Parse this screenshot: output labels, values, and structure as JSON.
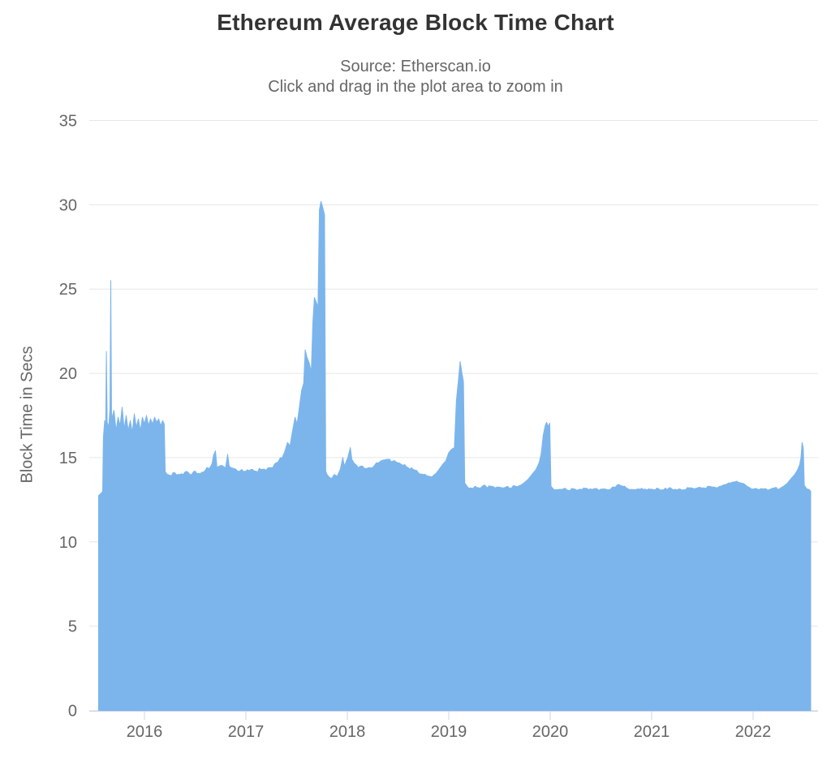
{
  "chart_data": {
    "type": "area",
    "title": "Ethereum Average Block Time Chart",
    "subtitle": [
      "Source: Etherscan.io",
      "Click and drag in the plot area to zoom in"
    ],
    "xlabel": "",
    "ylabel": "Block Time in Secs",
    "unit": "seconds",
    "ylim": [
      0,
      35
    ],
    "y_ticks": [
      0,
      5,
      10,
      15,
      20,
      25,
      30,
      35
    ],
    "x_ticks": [
      2016,
      2017,
      2018,
      2019,
      2020,
      2021,
      2022
    ],
    "x_tick_labels": [
      "2016",
      "2017",
      "2018",
      "2019",
      "2020",
      "2021",
      "2022"
    ],
    "xlim": [
      2015.45,
      2022.63
    ],
    "grid": "horizontal-only",
    "legend": "none",
    "colors": {
      "series_fill": "#7cb5ec",
      "series_line": "#7cb5ec",
      "grid": "#e6e6e6",
      "axis_line": "#ccd6eb",
      "label": "#666666",
      "title": "#333333",
      "background": "#ffffff"
    },
    "points": [
      [
        2015.548,
        12.75
      ],
      [
        2015.575,
        12.9
      ],
      [
        2015.588,
        13.0
      ],
      [
        2015.595,
        16.2
      ],
      [
        2015.608,
        17.2
      ],
      [
        2015.618,
        16.9
      ],
      [
        2015.625,
        21.3
      ],
      [
        2015.633,
        17.1
      ],
      [
        2015.648,
        16.8
      ],
      [
        2015.66,
        17.9
      ],
      [
        2015.668,
        25.5
      ],
      [
        2015.676,
        17.3
      ],
      [
        2015.7,
        17.8
      ],
      [
        2015.72,
        16.6
      ],
      [
        2015.74,
        17.4
      ],
      [
        2015.76,
        16.9
      ],
      [
        2015.78,
        18.0
      ],
      [
        2015.8,
        16.7
      ],
      [
        2015.82,
        17.5
      ],
      [
        2015.84,
        16.6
      ],
      [
        2015.86,
        17.2
      ],
      [
        2015.88,
        16.5
      ],
      [
        2015.9,
        17.6
      ],
      [
        2015.92,
        16.8
      ],
      [
        2015.94,
        17.3
      ],
      [
        2015.96,
        16.6
      ],
      [
        2015.98,
        17.4
      ],
      [
        2016.0,
        17.0
      ],
      [
        2016.02,
        17.5
      ],
      [
        2016.04,
        16.9
      ],
      [
        2016.06,
        17.3
      ],
      [
        2016.08,
        17.0
      ],
      [
        2016.1,
        17.4
      ],
      [
        2016.12,
        17.1
      ],
      [
        2016.14,
        17.3
      ],
      [
        2016.16,
        16.9
      ],
      [
        2016.18,
        17.2
      ],
      [
        2016.195,
        17.0
      ],
      [
        2016.205,
        14.15
      ],
      [
        2016.25,
        13.95
      ],
      [
        2016.3,
        14.1
      ],
      [
        2016.35,
        14.0
      ],
      [
        2016.4,
        14.15
      ],
      [
        2016.45,
        14.0
      ],
      [
        2016.5,
        14.2
      ],
      [
        2016.55,
        14.05
      ],
      [
        2016.6,
        14.25
      ],
      [
        2016.65,
        14.45
      ],
      [
        2016.7,
        15.4
      ],
      [
        2016.715,
        14.4
      ],
      [
        2016.76,
        14.55
      ],
      [
        2016.8,
        14.4
      ],
      [
        2016.82,
        15.2
      ],
      [
        2016.835,
        14.5
      ],
      [
        2016.88,
        14.35
      ],
      [
        2016.92,
        14.2
      ],
      [
        2016.96,
        14.3
      ],
      [
        2017.0,
        14.2
      ],
      [
        2017.05,
        14.3
      ],
      [
        2017.1,
        14.2
      ],
      [
        2017.15,
        14.3
      ],
      [
        2017.2,
        14.25
      ],
      [
        2017.25,
        14.4
      ],
      [
        2017.3,
        14.7
      ],
      [
        2017.34,
        15.0
      ],
      [
        2017.38,
        15.3
      ],
      [
        2017.41,
        15.9
      ],
      [
        2017.435,
        15.7
      ],
      [
        2017.46,
        16.6
      ],
      [
        2017.485,
        17.4
      ],
      [
        2017.505,
        17.0
      ],
      [
        2017.53,
        18.1
      ],
      [
        2017.55,
        19.0
      ],
      [
        2017.57,
        19.4
      ],
      [
        2017.585,
        21.4
      ],
      [
        2017.6,
        21.0
      ],
      [
        2017.625,
        20.6
      ],
      [
        2017.645,
        20.1
      ],
      [
        2017.66,
        23.0
      ],
      [
        2017.675,
        24.5
      ],
      [
        2017.695,
        24.2
      ],
      [
        2017.71,
        23.9
      ],
      [
        2017.725,
        29.7
      ],
      [
        2017.74,
        30.2
      ],
      [
        2017.755,
        29.9
      ],
      [
        2017.775,
        29.4
      ],
      [
        2017.787,
        14.2
      ],
      [
        2017.8,
        14.0
      ],
      [
        2017.82,
        13.85
      ],
      [
        2017.845,
        13.75
      ],
      [
        2017.87,
        14.0
      ],
      [
        2017.9,
        13.9
      ],
      [
        2017.93,
        14.3
      ],
      [
        2017.955,
        15.0
      ],
      [
        2017.97,
        14.5
      ],
      [
        2018.005,
        15.0
      ],
      [
        2018.03,
        15.6
      ],
      [
        2018.045,
        14.9
      ],
      [
        2018.07,
        14.65
      ],
      [
        2018.11,
        14.4
      ],
      [
        2018.15,
        14.5
      ],
      [
        2018.19,
        14.35
      ],
      [
        2018.23,
        14.4
      ],
      [
        2018.27,
        14.55
      ],
      [
        2018.31,
        14.7
      ],
      [
        2018.35,
        14.85
      ],
      [
        2018.4,
        14.9
      ],
      [
        2018.45,
        14.8
      ],
      [
        2018.5,
        14.7
      ],
      [
        2018.55,
        14.55
      ],
      [
        2018.6,
        14.4
      ],
      [
        2018.65,
        14.3
      ],
      [
        2018.7,
        14.1
      ],
      [
        2018.75,
        14.0
      ],
      [
        2018.8,
        13.9
      ],
      [
        2018.85,
        13.95
      ],
      [
        2018.88,
        14.1
      ],
      [
        2018.91,
        14.35
      ],
      [
        2018.94,
        14.6
      ],
      [
        2018.97,
        14.8
      ],
      [
        2019.0,
        15.3
      ],
      [
        2019.03,
        15.5
      ],
      [
        2019.055,
        15.6
      ],
      [
        2019.075,
        18.4
      ],
      [
        2019.095,
        19.6
      ],
      [
        2019.112,
        20.7
      ],
      [
        2019.13,
        20.0
      ],
      [
        2019.145,
        19.5
      ],
      [
        2019.158,
        13.5
      ],
      [
        2019.18,
        13.3
      ],
      [
        2019.22,
        13.2
      ],
      [
        2019.26,
        13.3
      ],
      [
        2019.3,
        13.2
      ],
      [
        2019.34,
        13.35
      ],
      [
        2019.38,
        13.2
      ],
      [
        2019.42,
        13.3
      ],
      [
        2019.46,
        13.2
      ],
      [
        2019.5,
        13.25
      ],
      [
        2019.54,
        13.2
      ],
      [
        2019.58,
        13.3
      ],
      [
        2019.62,
        13.2
      ],
      [
        2019.66,
        13.3
      ],
      [
        2019.7,
        13.35
      ],
      [
        2019.74,
        13.5
      ],
      [
        2019.78,
        13.7
      ],
      [
        2019.82,
        14.0
      ],
      [
        2019.86,
        14.3
      ],
      [
        2019.89,
        14.7
      ],
      [
        2019.91,
        15.2
      ],
      [
        2019.93,
        16.3
      ],
      [
        2019.95,
        16.9
      ],
      [
        2019.965,
        17.1
      ],
      [
        2019.98,
        16.85
      ],
      [
        2019.995,
        17.05
      ],
      [
        2020.008,
        13.3
      ],
      [
        2020.03,
        13.15
      ],
      [
        2020.08,
        13.1
      ],
      [
        2020.13,
        13.15
      ],
      [
        2020.18,
        13.05
      ],
      [
        2020.23,
        13.15
      ],
      [
        2020.28,
        13.1
      ],
      [
        2020.33,
        13.2
      ],
      [
        2020.38,
        13.1
      ],
      [
        2020.43,
        13.15
      ],
      [
        2020.48,
        13.05
      ],
      [
        2020.53,
        13.15
      ],
      [
        2020.58,
        13.1
      ],
      [
        2020.63,
        13.25
      ],
      [
        2020.68,
        13.4
      ],
      [
        2020.72,
        13.3
      ],
      [
        2020.77,
        13.15
      ],
      [
        2020.82,
        13.1
      ],
      [
        2020.87,
        13.15
      ],
      [
        2020.92,
        13.1
      ],
      [
        2020.97,
        13.15
      ],
      [
        2021.02,
        13.1
      ],
      [
        2021.07,
        13.15
      ],
      [
        2021.12,
        13.1
      ],
      [
        2021.17,
        13.2
      ],
      [
        2021.22,
        13.1
      ],
      [
        2021.27,
        13.15
      ],
      [
        2021.32,
        13.1
      ],
      [
        2021.37,
        13.2
      ],
      [
        2021.42,
        13.15
      ],
      [
        2021.47,
        13.25
      ],
      [
        2021.52,
        13.2
      ],
      [
        2021.57,
        13.3
      ],
      [
        2021.62,
        13.25
      ],
      [
        2021.67,
        13.3
      ],
      [
        2021.72,
        13.4
      ],
      [
        2021.76,
        13.5
      ],
      [
        2021.8,
        13.55
      ],
      [
        2021.84,
        13.6
      ],
      [
        2021.88,
        13.5
      ],
      [
        2021.91,
        13.45
      ],
      [
        2021.94,
        13.3
      ],
      [
        2021.97,
        13.2
      ],
      [
        2022.01,
        13.15
      ],
      [
        2022.06,
        13.1
      ],
      [
        2022.11,
        13.15
      ],
      [
        2022.16,
        13.1
      ],
      [
        2022.21,
        13.2
      ],
      [
        2022.26,
        13.15
      ],
      [
        2022.3,
        13.3
      ],
      [
        2022.34,
        13.5
      ],
      [
        2022.38,
        13.8
      ],
      [
        2022.41,
        14.0
      ],
      [
        2022.44,
        14.3
      ],
      [
        2022.46,
        14.6
      ],
      [
        2022.472,
        15.0
      ],
      [
        2022.483,
        15.9
      ],
      [
        2022.495,
        15.55
      ],
      [
        2022.505,
        13.35
      ],
      [
        2022.53,
        13.15
      ],
      [
        2022.555,
        13.1
      ],
      [
        2022.568,
        13.0
      ]
    ],
    "noise_segments": [
      {
        "from": 2015.6,
        "to": 2016.19,
        "amp": 0.4
      },
      {
        "from": 2016.22,
        "to": 2017.24,
        "amp": 0.12
      },
      {
        "from": 2017.25,
        "to": 2017.56,
        "amp": 0.22
      },
      {
        "from": 2017.8,
        "to": 2017.92,
        "amp": 0.12
      },
      {
        "from": 2018.06,
        "to": 2018.95,
        "amp": 0.09
      },
      {
        "from": 2019.17,
        "to": 2019.72,
        "amp": 0.1
      },
      {
        "from": 2020.02,
        "to": 2022.3,
        "amp": 0.07
      }
    ],
    "annotations": {
      "peak_2015": 25.5,
      "peak_2017": 30.2,
      "peak_2019": 20.7,
      "peak_2020": 17.1,
      "peak_2022": 15.9,
      "baseline_recent": 13.1
    }
  }
}
